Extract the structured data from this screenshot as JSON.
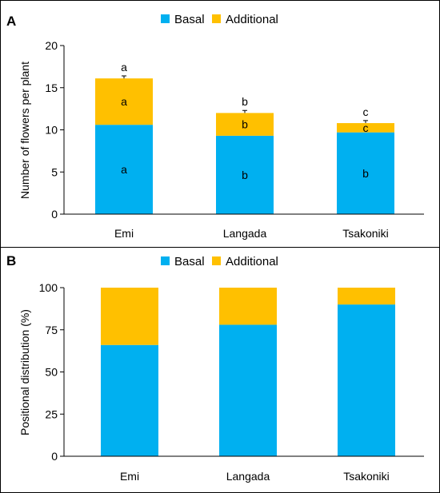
{
  "colors": {
    "basal": "#00b0f0",
    "additional": "#ffc000",
    "axis": "#000000",
    "frame": "#000000"
  },
  "chart_data": [
    {
      "type": "bar",
      "stacked": true,
      "panel_label": "A",
      "categories": [
        "Emi",
        "Langada",
        "Tsakoniki"
      ],
      "series": [
        {
          "name": "Basal",
          "values": [
            10.6,
            9.3,
            9.7
          ],
          "letters": [
            "a",
            "b",
            "b"
          ]
        },
        {
          "name": "Additional",
          "values": [
            5.5,
            2.7,
            1.1
          ],
          "letters": [
            "a",
            "b",
            "c"
          ]
        }
      ],
      "totals": [
        16.1,
        12.0,
        10.8
      ],
      "error": [
        0.3,
        0.3,
        0.3
      ],
      "total_letters": [
        "a",
        "b",
        "c"
      ],
      "ylabel": "Number of flowers per plant",
      "xlabel": "",
      "ylim": [
        0,
        20
      ],
      "yticks": [
        0,
        5,
        10,
        15,
        20
      ],
      "legend": "top-center",
      "grid": false
    },
    {
      "type": "bar",
      "stacked": true,
      "panel_label": "B",
      "categories": [
        "Emi",
        "Langada",
        "Tsakoniki"
      ],
      "series": [
        {
          "name": "Basal",
          "values": [
            66,
            78,
            90
          ]
        },
        {
          "name": "Additional",
          "values": [
            34,
            22,
            10
          ]
        }
      ],
      "ylabel": "Positional distribution (%)",
      "xlabel": "",
      "ylim": [
        0,
        100
      ],
      "yticks": [
        0,
        25,
        50,
        75,
        100
      ],
      "legend": "top-center",
      "grid": false
    }
  ]
}
